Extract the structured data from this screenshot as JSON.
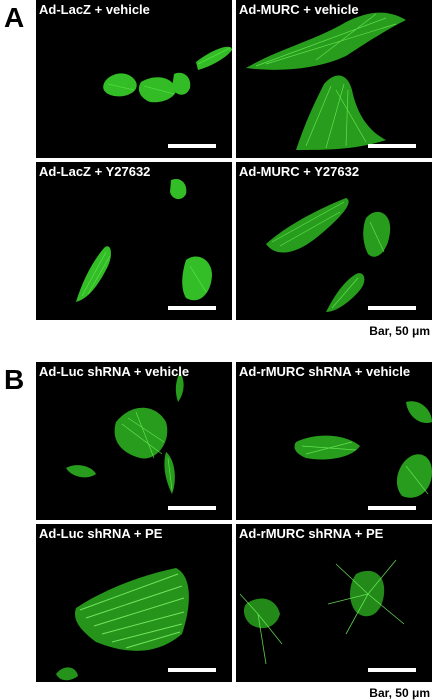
{
  "panel_a": {
    "letter": "A",
    "tiles": [
      {
        "label": "Ad-LacZ + vehicle"
      },
      {
        "label": "Ad-MURC + vehicle"
      },
      {
        "label": "Ad-LacZ + Y27632"
      },
      {
        "label": "Ad-MURC + Y27632"
      }
    ],
    "bar_caption": "Bar, 50 μm"
  },
  "panel_b": {
    "letter": "B",
    "tiles": [
      {
        "label": "Ad-Luc shRNA + vehicle"
      },
      {
        "label": "Ad-rMURC shRNA + vehicle"
      },
      {
        "label": "Ad-Luc shRNA + PE"
      },
      {
        "label": "Ad-rMURC shRNA + PE"
      }
    ],
    "bar_caption": "Bar, 50 μm"
  },
  "colors": {
    "fluorescence": "#39d12a",
    "background": "#000000"
  }
}
